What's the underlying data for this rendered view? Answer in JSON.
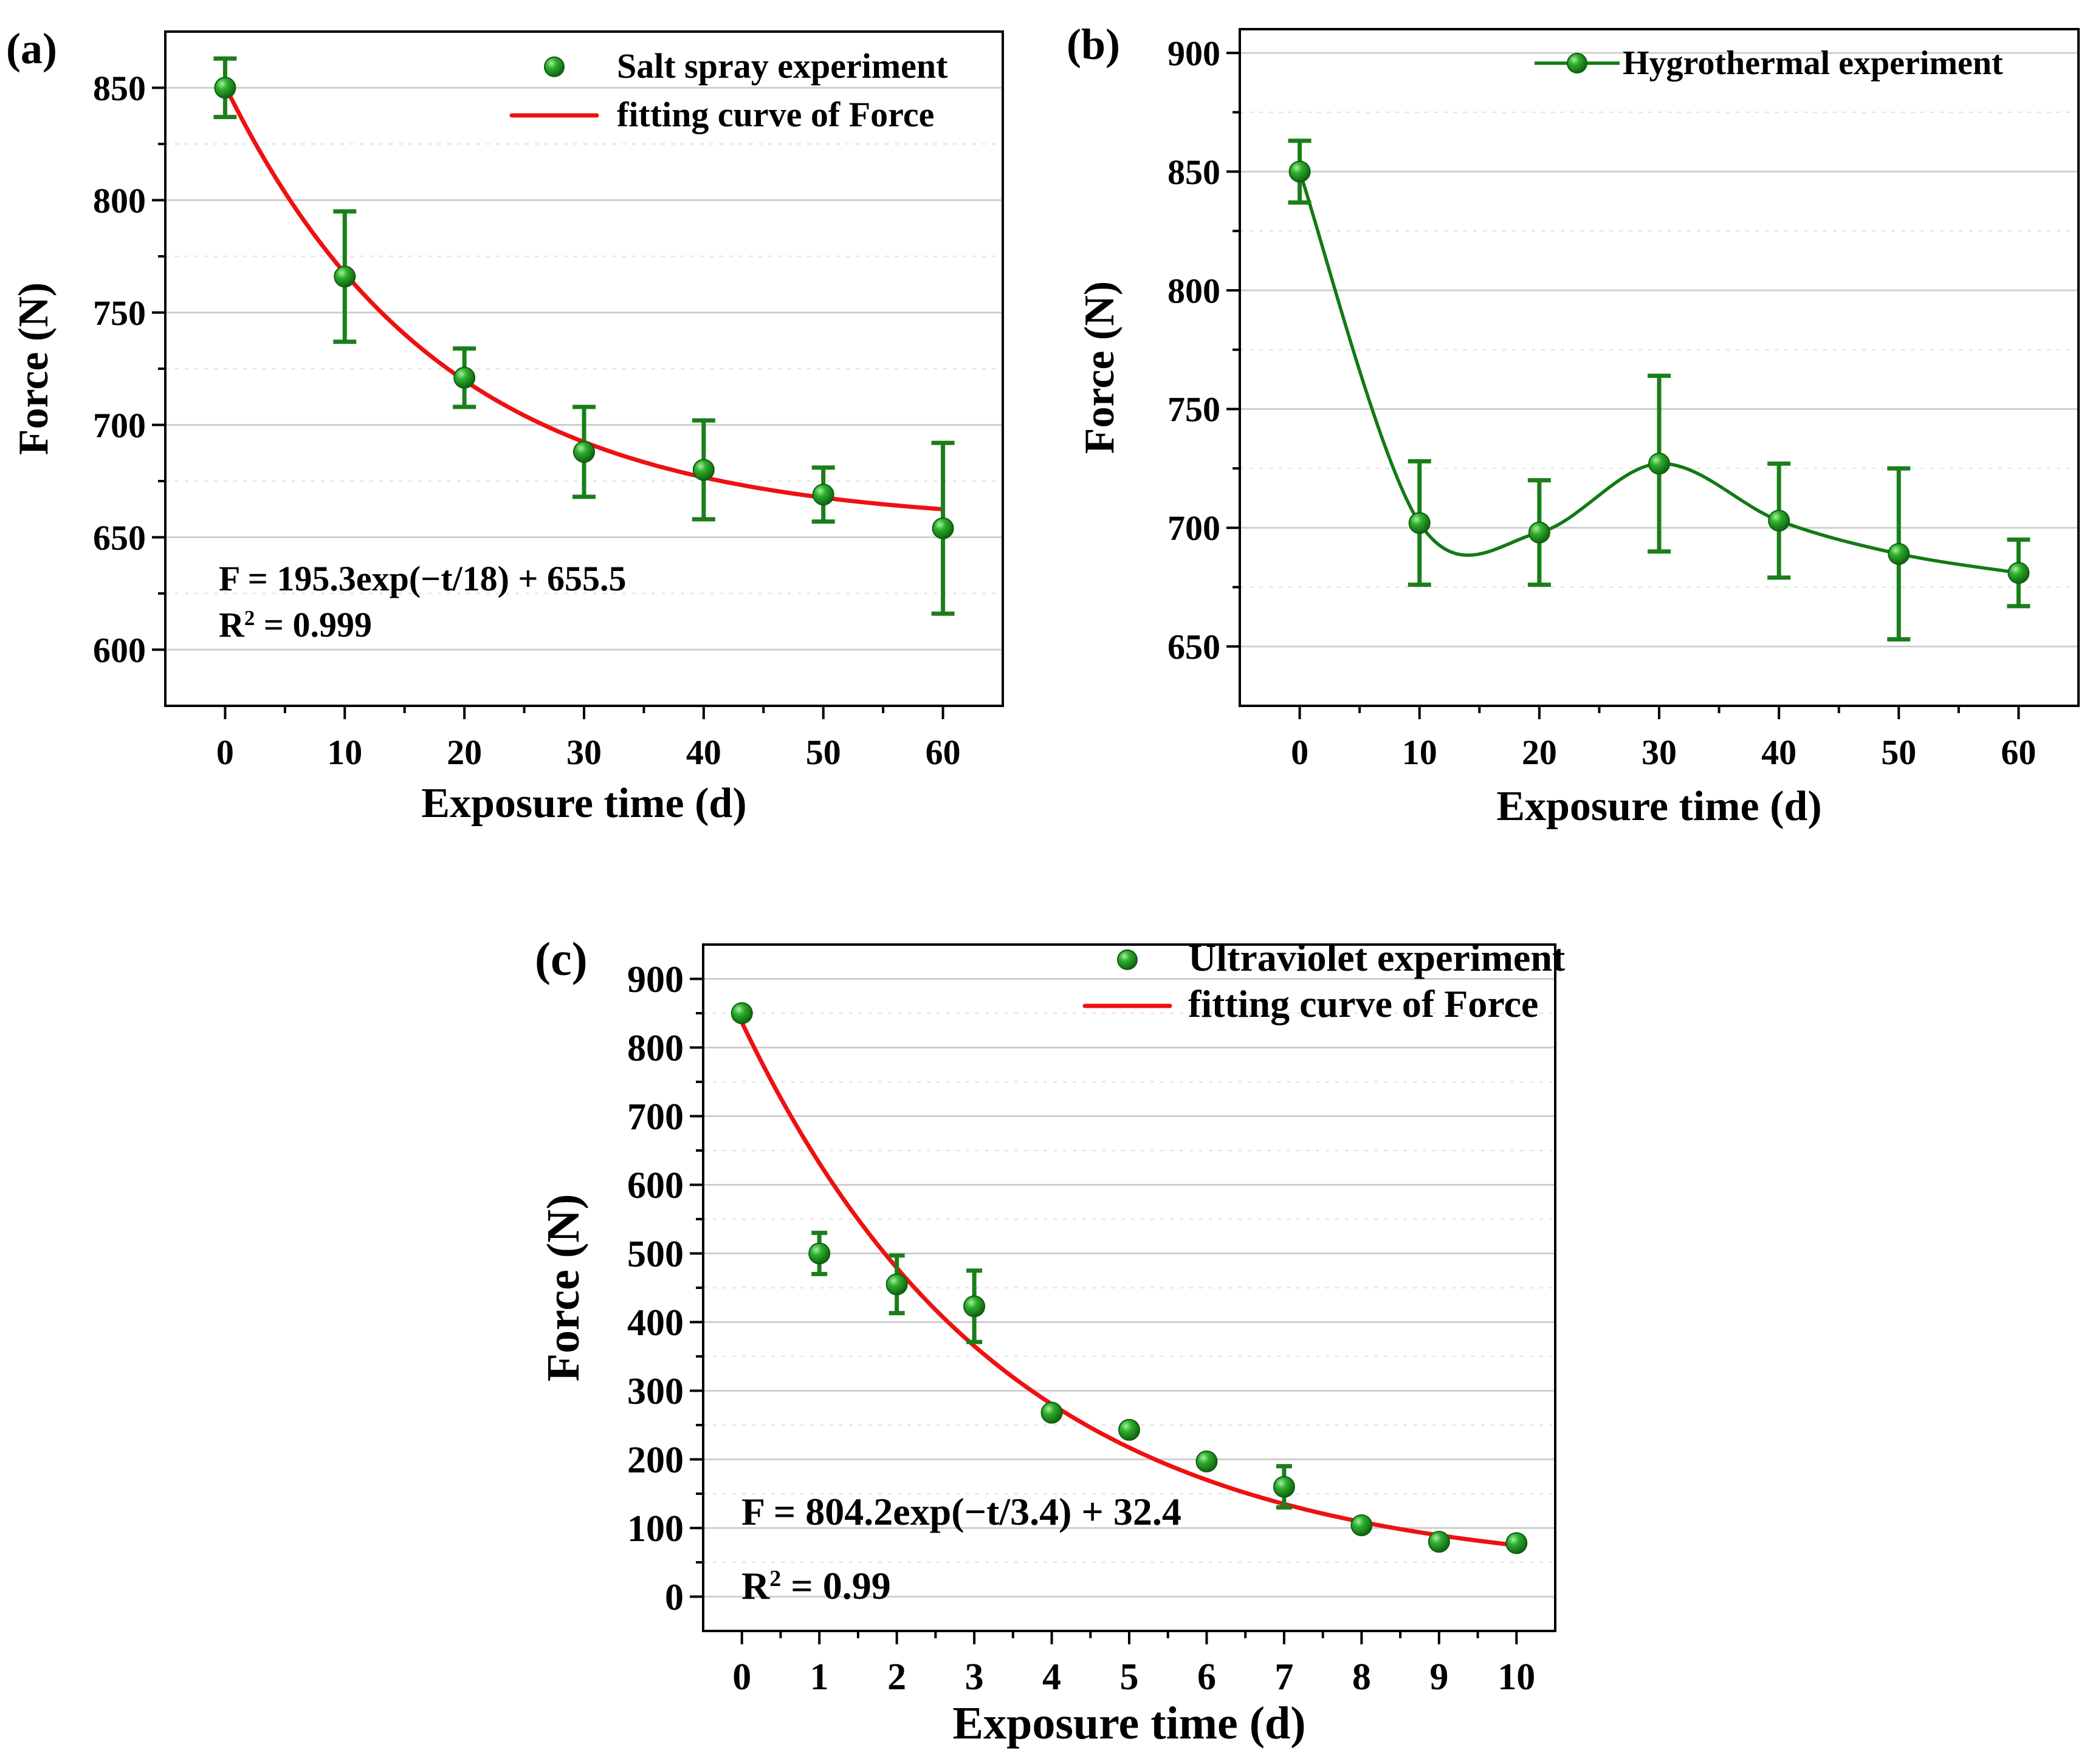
{
  "colors": {
    "marker": "#1a8a1a",
    "error_bar": "#1a7f1a",
    "fit_red": "#ee1111",
    "fit_green": "#137a13"
  },
  "chart_data": [
    {
      "id": "a",
      "type": "scatter",
      "panel_label": "(a)",
      "xlabel": "Exposure time (d)",
      "ylabel": "Force (N)",
      "xlim": [
        -5,
        65
      ],
      "ylim": [
        575,
        875
      ],
      "xticks": [
        0,
        10,
        20,
        30,
        40,
        50,
        60
      ],
      "yticks": [
        600,
        650,
        700,
        750,
        800,
        850
      ],
      "x": [
        0,
        10,
        20,
        30,
        40,
        50,
        60
      ],
      "y": [
        850,
        766,
        721,
        688,
        680,
        669,
        654
      ],
      "err": [
        13,
        29,
        13,
        20,
        22,
        12,
        38
      ],
      "series_name": "Salt spray experiment",
      "fit": {
        "name": "fitting curve of Force",
        "A": 195.3,
        "tau": 18,
        "C": 655.5
      },
      "legend_position": "top-right",
      "annotations": {
        "equation": "F = 195.3exp(−t/18) + 655.5",
        "r2_label": "R",
        "r2_sup": "2",
        "r2_value": " = 0.999"
      }
    },
    {
      "id": "b",
      "type": "line",
      "panel_label": "(b)",
      "xlabel": "Exposure time (d)",
      "ylabel": "Force (N)",
      "xlim": [
        -5,
        65
      ],
      "ylim": [
        625,
        910
      ],
      "xticks": [
        0,
        10,
        20,
        30,
        40,
        50,
        60
      ],
      "yticks": [
        650,
        700,
        750,
        800,
        850,
        900
      ],
      "x": [
        0,
        10,
        20,
        30,
        40,
        50,
        60
      ],
      "y": [
        850,
        702,
        698,
        727,
        703,
        689,
        681
      ],
      "err": [
        13,
        26,
        22,
        37,
        24,
        36,
        14
      ],
      "series_name": "Hygrothermal experiment",
      "legend_position": "top-right"
    },
    {
      "id": "c",
      "type": "scatter",
      "panel_label": "(c)",
      "xlabel": "Exposure time (d)",
      "ylabel": "Force (N)",
      "xlim": [
        -0.5,
        10.5
      ],
      "ylim": [
        -50,
        950
      ],
      "xticks": [
        0,
        1,
        2,
        3,
        4,
        5,
        6,
        7,
        8,
        9,
        10
      ],
      "yticks": [
        0,
        100,
        200,
        300,
        400,
        500,
        600,
        700,
        800,
        900
      ],
      "x": [
        0,
        1,
        2,
        3,
        4,
        5,
        6,
        7,
        8,
        9,
        10
      ],
      "y": [
        850,
        500,
        455,
        423,
        268,
        243,
        197,
        160,
        104,
        80,
        78
      ],
      "err": [
        0,
        30,
        42,
        52,
        0,
        0,
        0,
        30,
        0,
        0,
        0
      ],
      "series_name": "Ultraviolet experiment",
      "fit": {
        "name": "fitting curve of Force",
        "A": 804.2,
        "tau": 3.4,
        "C": 32.4
      },
      "legend_position": "top-right",
      "annotations": {
        "equation": "F = 804.2exp(−t/3.4) + 32.4",
        "r2_label": "R",
        "r2_sup": "2",
        "r2_value": " = 0.99"
      }
    }
  ]
}
